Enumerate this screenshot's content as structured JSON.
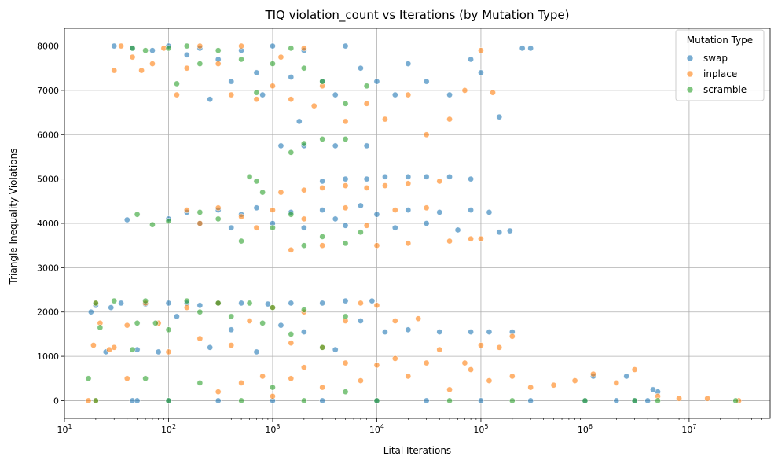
{
  "chart_data": {
    "type": "scatter",
    "title": "TIQ violation_count vs Iterations (by Mutation Type)",
    "xlabel": "Lital Iterations",
    "ylabel": "Triangle Inequality Violations",
    "xscale": "log",
    "xlim": [
      10,
      60000000
    ],
    "ylim": [
      -400,
      8400
    ],
    "grid": true,
    "legend": {
      "title": "Mutation Type",
      "placement": "top-right"
    },
    "x_ticks": [
      {
        "value": 10,
        "base": "10",
        "exp": "1"
      },
      {
        "value": 100,
        "base": "10",
        "exp": "2"
      },
      {
        "value": 1000,
        "base": "10",
        "exp": "3"
      },
      {
        "value": 10000,
        "base": "10",
        "exp": "4"
      },
      {
        "value": 100000,
        "base": "10",
        "exp": "5"
      },
      {
        "value": 1000000,
        "base": "10",
        "exp": "6"
      },
      {
        "value": 10000000,
        "base": "10",
        "exp": "7"
      }
    ],
    "y_ticks": [
      {
        "value": 0,
        "label": "0"
      },
      {
        "value": 1000,
        "label": "1000"
      },
      {
        "value": 2000,
        "label": "2000"
      },
      {
        "value": 3000,
        "label": "3000"
      },
      {
        "value": 4000,
        "label": "4000"
      },
      {
        "value": 5000,
        "label": "5000"
      },
      {
        "value": 6000,
        "label": "6000"
      },
      {
        "value": 7000,
        "label": "7000"
      },
      {
        "value": 8000,
        "label": "8000"
      }
    ],
    "series": [
      {
        "name": "swap",
        "color": "#1f77b4",
        "points": [
          [
            18,
            2000
          ],
          [
            20,
            2150
          ],
          [
            25,
            1100
          ],
          [
            28,
            2100
          ],
          [
            35,
            2200
          ],
          [
            45,
            0
          ],
          [
            50,
            1150
          ],
          [
            60,
            2180
          ],
          [
            80,
            1100
          ],
          [
            100,
            2200
          ],
          [
            120,
            1900
          ],
          [
            150,
            2200
          ],
          [
            200,
            2150
          ],
          [
            250,
            1200
          ],
          [
            300,
            2200
          ],
          [
            400,
            1600
          ],
          [
            500,
            2200
          ],
          [
            700,
            1100
          ],
          [
            900,
            2180
          ],
          [
            1200,
            1700
          ],
          [
            1500,
            2200
          ],
          [
            2000,
            1550
          ],
          [
            3000,
            2200
          ],
          [
            4000,
            1150
          ],
          [
            5000,
            2250
          ],
          [
            7000,
            1800
          ],
          [
            9000,
            2250
          ],
          [
            12000,
            1550
          ],
          [
            20000,
            1600
          ],
          [
            40000,
            1550
          ],
          [
            80000,
            1550
          ],
          [
            120000,
            1550
          ],
          [
            200000,
            1550
          ],
          [
            30,
            8000
          ],
          [
            45,
            7950
          ],
          [
            70,
            7900
          ],
          [
            100,
            8000
          ],
          [
            150,
            7800
          ],
          [
            200,
            7950
          ],
          [
            250,
            6800
          ],
          [
            300,
            7700
          ],
          [
            400,
            7200
          ],
          [
            500,
            7900
          ],
          [
            700,
            7400
          ],
          [
            800,
            6900
          ],
          [
            1000,
            8000
          ],
          [
            1500,
            7300
          ],
          [
            1800,
            6300
          ],
          [
            2000,
            7900
          ],
          [
            3000,
            7200
          ],
          [
            4000,
            6900
          ],
          [
            5000,
            8000
          ],
          [
            7000,
            7500
          ],
          [
            10000,
            7200
          ],
          [
            15000,
            6900
          ],
          [
            20000,
            7600
          ],
          [
            30000,
            7200
          ],
          [
            50000,
            6900
          ],
          [
            80000,
            7700
          ],
          [
            100000,
            7400
          ],
          [
            150000,
            6400
          ],
          [
            250000,
            7950
          ],
          [
            300000,
            7950
          ],
          [
            1200,
            5750
          ],
          [
            2000,
            5750
          ],
          [
            4000,
            5750
          ],
          [
            8000,
            5750
          ],
          [
            40,
            4080
          ],
          [
            100,
            4100
          ],
          [
            150,
            4250
          ],
          [
            200,
            4000
          ],
          [
            300,
            4300
          ],
          [
            400,
            3900
          ],
          [
            500,
            4200
          ],
          [
            700,
            4350
          ],
          [
            1000,
            4000
          ],
          [
            1500,
            4250
          ],
          [
            2000,
            3900
          ],
          [
            3000,
            4300
          ],
          [
            4000,
            4100
          ],
          [
            5000,
            3950
          ],
          [
            7000,
            4400
          ],
          [
            10000,
            4200
          ],
          [
            15000,
            3900
          ],
          [
            20000,
            4300
          ],
          [
            30000,
            4000
          ],
          [
            40000,
            4250
          ],
          [
            60000,
            3850
          ],
          [
            80000,
            4300
          ],
          [
            120000,
            4250
          ],
          [
            150000,
            3800
          ],
          [
            190000,
            3830
          ],
          [
            3000,
            4950
          ],
          [
            5000,
            5000
          ],
          [
            8000,
            5000
          ],
          [
            12000,
            5050
          ],
          [
            20000,
            5050
          ],
          [
            30000,
            5050
          ],
          [
            50000,
            5050
          ],
          [
            80000,
            5000
          ],
          [
            50,
            0
          ],
          [
            100,
            0
          ],
          [
            300,
            0
          ],
          [
            1000,
            0
          ],
          [
            3000,
            0
          ],
          [
            10000,
            0
          ],
          [
            30000,
            0
          ],
          [
            100000,
            0
          ],
          [
            300000,
            0
          ],
          [
            1000000,
            0
          ],
          [
            2000000,
            0
          ],
          [
            3000000,
            0
          ],
          [
            4000000,
            0
          ],
          [
            5000000,
            200
          ],
          [
            4500000,
            250
          ],
          [
            2500000,
            550
          ],
          [
            1200000,
            550
          ]
        ]
      },
      {
        "name": "inplace",
        "color": "#ff7f0e",
        "points": [
          [
            17,
            0
          ],
          [
            19,
            1250
          ],
          [
            22,
            1750
          ],
          [
            27,
            1150
          ],
          [
            30,
            7450
          ],
          [
            35,
            8000
          ],
          [
            45,
            7750
          ],
          [
            55,
            7450
          ],
          [
            70,
            7600
          ],
          [
            90,
            7950
          ],
          [
            120,
            6900
          ],
          [
            150,
            7500
          ],
          [
            200,
            8000
          ],
          [
            300,
            7600
          ],
          [
            400,
            6900
          ],
          [
            500,
            8000
          ],
          [
            700,
            6800
          ],
          [
            1000,
            7100
          ],
          [
            1200,
            7750
          ],
          [
            1500,
            6800
          ],
          [
            2000,
            7950
          ],
          [
            2500,
            6650
          ],
          [
            3000,
            7100
          ],
          [
            5000,
            6300
          ],
          [
            8000,
            6700
          ],
          [
            12000,
            6350
          ],
          [
            20000,
            6900
          ],
          [
            30000,
            6000
          ],
          [
            50000,
            6350
          ],
          [
            70000,
            7000
          ],
          [
            100000,
            7900
          ],
          [
            130000,
            6950
          ],
          [
            1200,
            4700
          ],
          [
            2000,
            4750
          ],
          [
            3000,
            4800
          ],
          [
            5000,
            4850
          ],
          [
            8000,
            4800
          ],
          [
            12000,
            4850
          ],
          [
            20000,
            4900
          ],
          [
            40000,
            4950
          ],
          [
            150,
            4300
          ],
          [
            200,
            4000
          ],
          [
            300,
            4350
          ],
          [
            500,
            4150
          ],
          [
            700,
            3900
          ],
          [
            1000,
            4300
          ],
          [
            1500,
            3400
          ],
          [
            2000,
            4100
          ],
          [
            3000,
            3500
          ],
          [
            5000,
            4350
          ],
          [
            8000,
            3950
          ],
          [
            10000,
            3500
          ],
          [
            15000,
            4300
          ],
          [
            20000,
            3550
          ],
          [
            30000,
            4350
          ],
          [
            50000,
            3600
          ],
          [
            80000,
            3650
          ],
          [
            100000,
            3650
          ],
          [
            20,
            2200
          ],
          [
            30,
            1200
          ],
          [
            40,
            1700
          ],
          [
            60,
            2200
          ],
          [
            80,
            1750
          ],
          [
            100,
            1100
          ],
          [
            150,
            2100
          ],
          [
            200,
            1400
          ],
          [
            300,
            2200
          ],
          [
            400,
            1250
          ],
          [
            600,
            1800
          ],
          [
            1000,
            2100
          ],
          [
            1500,
            1300
          ],
          [
            2000,
            2000
          ],
          [
            3000,
            1200
          ],
          [
            5000,
            1800
          ],
          [
            7000,
            2200
          ],
          [
            10000,
            2150
          ],
          [
            15000,
            1800
          ],
          [
            25000,
            1850
          ],
          [
            40000,
            1150
          ],
          [
            70000,
            850
          ],
          [
            100000,
            1250
          ],
          [
            150000,
            1200
          ],
          [
            200000,
            1450
          ],
          [
            300,
            200
          ],
          [
            500,
            400
          ],
          [
            800,
            550
          ],
          [
            1000,
            100
          ],
          [
            1500,
            500
          ],
          [
            2000,
            750
          ],
          [
            3000,
            300
          ],
          [
            5000,
            850
          ],
          [
            7000,
            450
          ],
          [
            10000,
            800
          ],
          [
            15000,
            950
          ],
          [
            20000,
            550
          ],
          [
            30000,
            850
          ],
          [
            50000,
            250
          ],
          [
            80000,
            700
          ],
          [
            120000,
            450
          ],
          [
            200000,
            550
          ],
          [
            300000,
            300
          ],
          [
            500000,
            350
          ],
          [
            800000,
            450
          ],
          [
            1200000,
            600
          ],
          [
            2000000,
            400
          ],
          [
            3000000,
            700
          ],
          [
            5000000,
            100
          ],
          [
            8000000,
            50
          ],
          [
            15000000,
            50
          ],
          [
            30000000,
            0
          ],
          [
            20,
            0
          ],
          [
            40,
            500
          ]
        ]
      },
      {
        "name": "scramble",
        "color": "#2ca02c",
        "points": [
          [
            17,
            500
          ],
          [
            20,
            2200
          ],
          [
            22,
            1650
          ],
          [
            30,
            2250
          ],
          [
            45,
            1150
          ],
          [
            50,
            1750
          ],
          [
            60,
            2250
          ],
          [
            75,
            1750
          ],
          [
            100,
            1600
          ],
          [
            150,
            2250
          ],
          [
            200,
            2000
          ],
          [
            300,
            2200
          ],
          [
            400,
            1900
          ],
          [
            600,
            2200
          ],
          [
            800,
            1750
          ],
          [
            1000,
            2100
          ],
          [
            1500,
            1500
          ],
          [
            2000,
            2050
          ],
          [
            3000,
            1200
          ],
          [
            5000,
            1900
          ],
          [
            45,
            7950
          ],
          [
            60,
            7900
          ],
          [
            100,
            7950
          ],
          [
            120,
            7150
          ],
          [
            150,
            8000
          ],
          [
            200,
            7600
          ],
          [
            300,
            7900
          ],
          [
            500,
            7700
          ],
          [
            700,
            6950
          ],
          [
            1000,
            7600
          ],
          [
            1500,
            7950
          ],
          [
            2000,
            7500
          ],
          [
            3000,
            7200
          ],
          [
            5000,
            6700
          ],
          [
            8000,
            7100
          ],
          [
            50,
            4200
          ],
          [
            70,
            3970
          ],
          [
            100,
            4050
          ],
          [
            200,
            4250
          ],
          [
            300,
            4100
          ],
          [
            500,
            3600
          ],
          [
            600,
            5050
          ],
          [
            700,
            4950
          ],
          [
            800,
            4700
          ],
          [
            1000,
            3900
          ],
          [
            1500,
            4200
          ],
          [
            2000,
            3500
          ],
          [
            3000,
            3700
          ],
          [
            5000,
            3550
          ],
          [
            7000,
            3800
          ],
          [
            1500,
            5600
          ],
          [
            2000,
            5800
          ],
          [
            3000,
            5900
          ],
          [
            5000,
            5900
          ],
          [
            20,
            0
          ],
          [
            60,
            500
          ],
          [
            100,
            0
          ],
          [
            200,
            400
          ],
          [
            500,
            0
          ],
          [
            1000,
            300
          ],
          [
            2000,
            0
          ],
          [
            5000,
            200
          ],
          [
            10000,
            0
          ],
          [
            50000,
            0
          ],
          [
            200000,
            0
          ],
          [
            1000000,
            0
          ],
          [
            3000000,
            0
          ],
          [
            5000000,
            0
          ],
          [
            28000000,
            0
          ]
        ]
      }
    ]
  }
}
